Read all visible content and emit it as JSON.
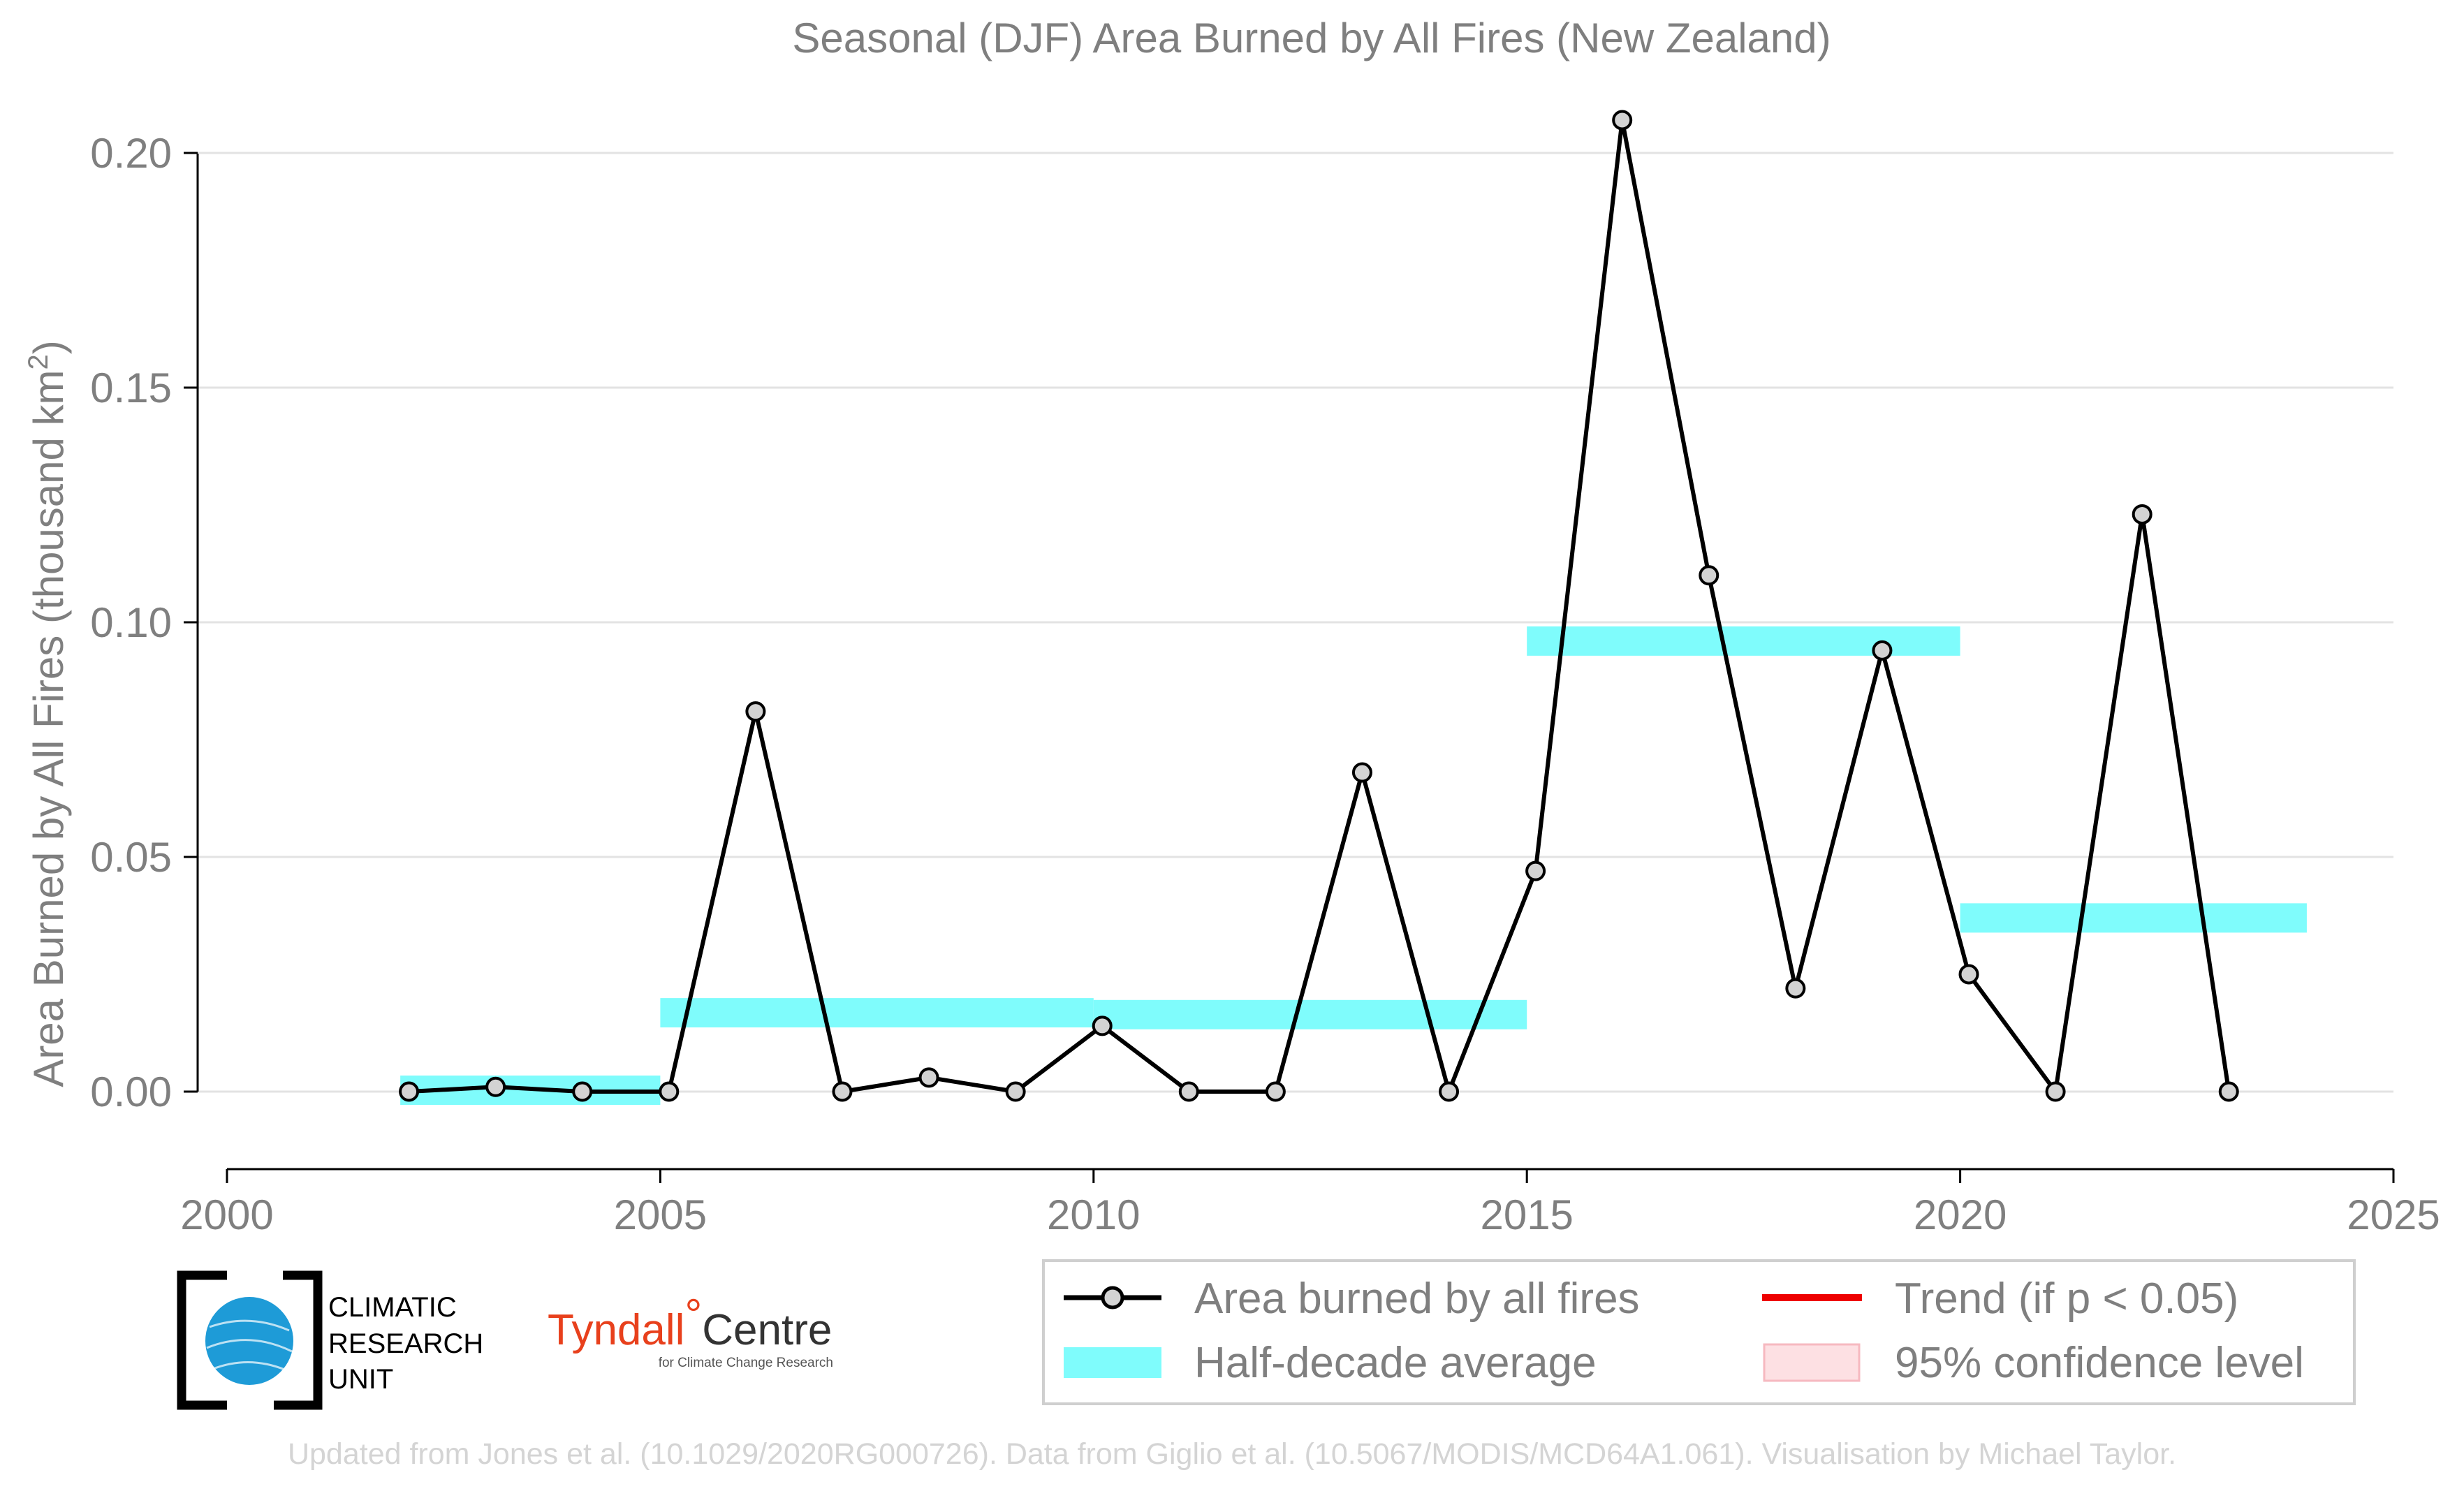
{
  "chart_data": {
    "type": "line",
    "title": "Seasonal (DJF) Area Burned by All Fires (New Zealand)",
    "xlabel": "",
    "ylabel": "Area Burned by All Fires (thousand km²)",
    "ylabel_parts": {
      "main": "Area Burned by All Fires (thousand km",
      "sup": "2",
      "end": ")"
    },
    "xlim": [
      2000,
      2025
    ],
    "ylim": [
      -0.0125,
      0.21
    ],
    "x_ticks": [
      "2000",
      "2005",
      "2010",
      "2015",
      "2020",
      "2025"
    ],
    "y_ticks": [
      "0.00",
      "0.05",
      "0.10",
      "0.15",
      "0.20"
    ],
    "grid": true,
    "series": [
      {
        "name": "Area burned by all fires",
        "color": "#000000",
        "marker_fill": "#d3d3d3",
        "x": [
          2002,
          2003,
          2004,
          2005,
          2006,
          2007,
          2008,
          2009,
          2010,
          2011,
          2012,
          2013,
          2014,
          2015,
          2016,
          2017,
          2018,
          2019,
          2020,
          2021,
          2022,
          2023
        ],
        "y": [
          0.0,
          0.001,
          0.0,
          0.0,
          0.081,
          0.0,
          0.003,
          0.0,
          0.014,
          0.0,
          0.0,
          0.068,
          0.0,
          0.047,
          0.207,
          0.11,
          0.022,
          0.094,
          0.025,
          0.0,
          0.123,
          0.0
        ]
      }
    ],
    "half_decade_average": {
      "name": "Half-decade average",
      "color": "#7ffcfc",
      "segments": [
        {
          "x_start": 2002,
          "x_end": 2005,
          "y": 0.0003
        },
        {
          "x_start": 2005,
          "x_end": 2010,
          "y": 0.0168
        },
        {
          "x_start": 2010,
          "x_end": 2015,
          "y": 0.0164
        },
        {
          "x_start": 2015,
          "x_end": 2020,
          "y": 0.096
        },
        {
          "x_start": 2020,
          "x_end": 2024,
          "y": 0.037
        }
      ]
    },
    "legend": {
      "placement": "bottom-right",
      "items": [
        {
          "label": "Area burned by all fires",
          "kind": "line-marker",
          "color": "#000000"
        },
        {
          "label": "Trend (if p < 0.05)",
          "kind": "line",
          "color": "#ee0000"
        },
        {
          "label": "Half-decade average",
          "kind": "band",
          "color": "#7ffcfc"
        },
        {
          "label": "95% confidence level",
          "kind": "patch",
          "color": "#fde0e3"
        }
      ]
    }
  },
  "logos": {
    "cru": {
      "line1": "CLIMATIC",
      "line2": "RESEARCH",
      "line3": "UNIT"
    },
    "tyndall": {
      "name": "Tyndall",
      "degree": "°",
      "centre": "Centre",
      "sub": "for Climate Change Research"
    }
  },
  "credit": "Updated from Jones et al. (10.1029/2020RG000726). Data from Giglio et al. (10.5067/MODIS/MCD64A1.061). Visualisation by Michael Taylor."
}
